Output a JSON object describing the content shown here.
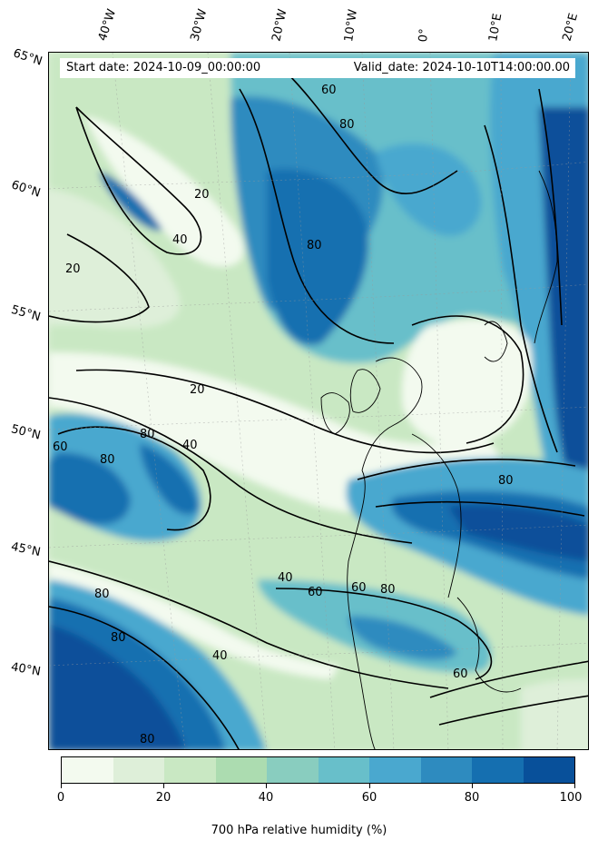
{
  "header": {
    "start_date": "Start date: 2024-10-09_00:00:00",
    "valid_date": "Valid_date: 2024-10-10T14:00:00.00"
  },
  "longitude_labels": [
    "40°W",
    "30°W",
    "20°W",
    "10°W",
    "0°",
    "10°E",
    "20°E"
  ],
  "latitude_labels": [
    "65°N",
    "60°N",
    "55°N",
    "50°N",
    "45°N",
    "40°N"
  ],
  "contour_labels": [
    "20",
    "40",
    "60",
    "80"
  ],
  "colorbar": {
    "title": "700 hPa relative humidity (%)",
    "ticks": [
      "0",
      "20",
      "40",
      "60",
      "80",
      "100"
    ],
    "colors": [
      "#f3faef",
      "#deefd9",
      "#c9e8c3",
      "#acdcb0",
      "#89cdbf",
      "#68bfca",
      "#4aa8cf",
      "#2e8bbf",
      "#156fb0",
      "#08509a"
    ]
  },
  "map_colors": {
    "land_dry": "#f3faef",
    "mid": "#acdcb0",
    "humid": "#4aa8cf",
    "very_humid": "#08509a"
  }
}
